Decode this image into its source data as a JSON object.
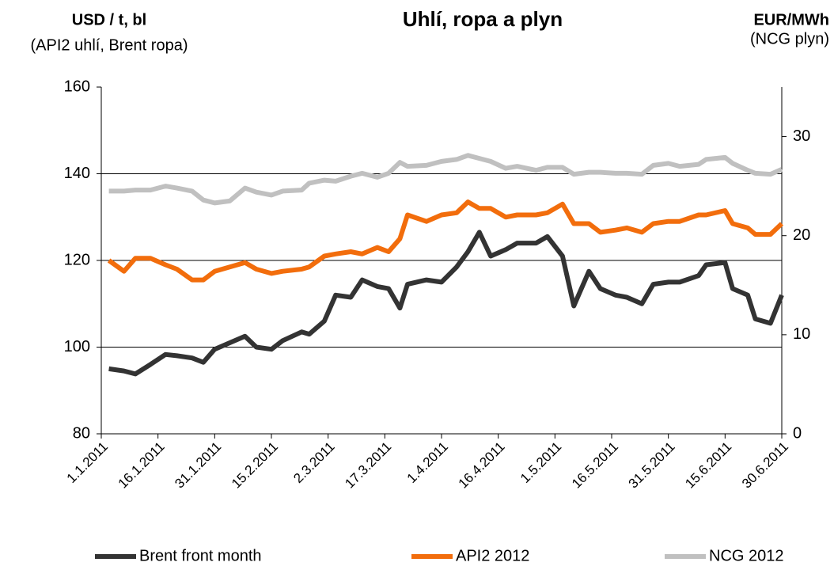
{
  "chart_data": {
    "type": "line",
    "title": "Uhlí, ropa a plyn",
    "y_label": "USD / t, bl",
    "y_sublabel": "(API2 uhlí, Brent ropa)",
    "y2_label": "EUR/MWh",
    "y2_sublabel": "(NCG plyn)",
    "x": [
      "2011-01-03",
      "2011-01-07",
      "2011-01-10",
      "2011-01-14",
      "2011-01-18",
      "2011-01-21",
      "2011-01-25",
      "2011-01-28",
      "2011-01-31",
      "2011-02-04",
      "2011-02-08",
      "2011-02-11",
      "2011-02-15",
      "2011-02-18",
      "2011-02-23",
      "2011-02-25",
      "2011-03-01",
      "2011-03-04",
      "2011-03-08",
      "2011-03-11",
      "2011-03-15",
      "2011-03-18",
      "2011-03-21",
      "2011-03-23",
      "2011-03-28",
      "2011-04-01",
      "2011-04-05",
      "2011-04-08",
      "2011-04-11",
      "2011-04-14",
      "2011-04-18",
      "2011-04-21",
      "2011-04-26",
      "2011-04-29",
      "2011-05-03",
      "2011-05-06",
      "2011-05-10",
      "2011-05-13",
      "2011-05-17",
      "2011-05-20",
      "2011-05-24",
      "2011-05-27",
      "2011-05-31",
      "2011-06-03",
      "2011-06-08",
      "2011-06-10",
      "2011-06-15",
      "2011-06-17",
      "2011-06-21",
      "2011-06-23",
      "2011-06-27",
      "2011-06-30"
    ],
    "xlim": [
      "2011-01-01",
      "2011-06-30"
    ],
    "xticks": [
      {
        "value": "2011-01-01",
        "label": "1.1.2011"
      },
      {
        "value": "2011-01-16",
        "label": "16.1.2011"
      },
      {
        "value": "2011-01-31",
        "label": "31.1.2011"
      },
      {
        "value": "2011-02-15",
        "label": "15.2.2011"
      },
      {
        "value": "2011-03-02",
        "label": "2.3.2011"
      },
      {
        "value": "2011-03-17",
        "label": "17.3.2011"
      },
      {
        "value": "2011-04-01",
        "label": "1.4.2011"
      },
      {
        "value": "2011-04-16",
        "label": "16.4.2011"
      },
      {
        "value": "2011-05-01",
        "label": "1.5.2011"
      },
      {
        "value": "2011-05-16",
        "label": "16.5.2011"
      },
      {
        "value": "2011-05-31",
        "label": "31.5.2011"
      },
      {
        "value": "2011-06-15",
        "label": "15.6.2011"
      },
      {
        "value": "2011-06-30",
        "label": "30.6.2011"
      }
    ],
    "ylim": [
      80,
      160
    ],
    "yticks": [
      80,
      100,
      120,
      140,
      160
    ],
    "y2lim": [
      0,
      35
    ],
    "y2ticks": [
      0,
      10,
      20,
      30
    ],
    "grid": true,
    "legend": "bottom",
    "series": [
      {
        "name": "Brent front month",
        "color": "#333333",
        "axis": "y",
        "values": [
          95,
          94.5,
          93.8,
          96,
          98.3,
          98,
          97.5,
          96.5,
          99.5,
          101,
          102.5,
          100,
          99.5,
          101.5,
          103.5,
          103,
          106,
          112,
          111.5,
          115.5,
          114,
          113.5,
          109,
          114.5,
          115.5,
          115,
          118.5,
          122,
          126.5,
          121,
          122.5,
          124,
          124,
          125.5,
          121,
          109.5,
          117.5,
          113.5,
          112,
          111.5,
          110,
          114.5,
          115,
          115,
          116.5,
          119,
          119.5,
          113.5,
          112,
          106.5,
          105.5,
          112
        ]
      },
      {
        "name": "API2 2012",
        "color": "#f26d0c",
        "axis": "y",
        "values": [
          120,
          117.5,
          120.5,
          120.5,
          119,
          118,
          115.5,
          115.5,
          117.5,
          118.5,
          119.5,
          118,
          117,
          117.5,
          118,
          118.5,
          121,
          121.5,
          122,
          121.5,
          123,
          122,
          125,
          130.5,
          129,
          130.5,
          131,
          133.5,
          132,
          132,
          130,
          130.5,
          130.5,
          131,
          133,
          128.5,
          128.5,
          126.5,
          127,
          127.5,
          126.5,
          128.5,
          129,
          129,
          130.5,
          130.5,
          131.5,
          128.5,
          127.5,
          126,
          126,
          128.5
        ]
      },
      {
        "name": "NCG 2012",
        "color": "#c0c0c0",
        "axis": "y2",
        "values": [
          24.5,
          24.5,
          24.6,
          24.6,
          25,
          24.8,
          24.5,
          23.6,
          23.3,
          23.5,
          24.8,
          24.4,
          24.1,
          24.5,
          24.6,
          25.3,
          25.6,
          25.5,
          26,
          26.3,
          25.9,
          26.3,
          27.4,
          27,
          27.1,
          27.5,
          27.7,
          28.1,
          27.8,
          27.5,
          26.8,
          27,
          26.6,
          26.9,
          26.9,
          26.2,
          26.4,
          26.4,
          26.3,
          26.3,
          26.2,
          27.1,
          27.3,
          27,
          27.2,
          27.7,
          27.9,
          27.3,
          26.6,
          26.3,
          26.2,
          26.7
        ]
      }
    ]
  }
}
